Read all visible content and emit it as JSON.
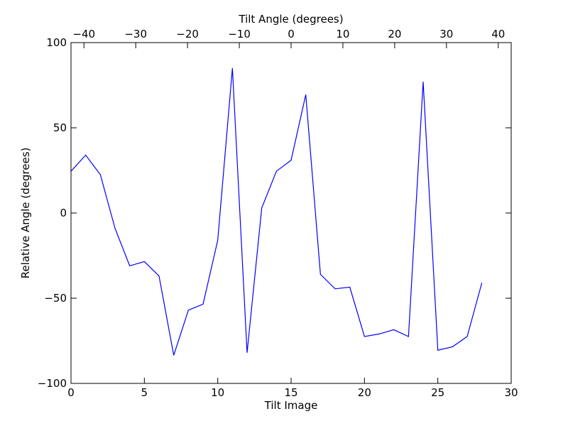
{
  "chart_data": {
    "type": "line",
    "title": "",
    "xlabel": "Tilt Image",
    "ylabel": "Relative Angle (degrees)",
    "top_xlabel": "Tilt Angle (degrees)",
    "xlim": [
      0,
      30
    ],
    "ylim": [
      -100,
      100
    ],
    "top_xlim": [
      -42.5,
      42.5
    ],
    "grid": false,
    "legend": "none",
    "line_color": "#0000ff",
    "x_ticks": [
      0,
      5,
      10,
      15,
      20,
      25,
      30
    ],
    "x_tick_labels": [
      "0",
      "5",
      "10",
      "15",
      "20",
      "25",
      "30"
    ],
    "y_ticks": [
      -100,
      -50,
      0,
      50,
      100
    ],
    "y_tick_labels": [
      "−100",
      "−50",
      "0",
      "50",
      "100"
    ],
    "top_x_ticks": [
      -40,
      -30,
      -20,
      -10,
      0,
      10,
      20,
      30,
      40
    ],
    "top_x_tick_labels": [
      "−40",
      "−30",
      "−20",
      "−10",
      "0",
      "10",
      "20",
      "30",
      "40"
    ],
    "series": [
      {
        "x": [
          0,
          1,
          2,
          3,
          4,
          5,
          6,
          7,
          8,
          9,
          10,
          11,
          12,
          13,
          14,
          15,
          16,
          17,
          18,
          19,
          20,
          21,
          22,
          23,
          24,
          25,
          26,
          27,
          28
        ],
        "values": [
          24.5,
          34,
          22.5,
          -9,
          -31,
          -28.5,
          -37,
          -83.5,
          -57,
          -53.5,
          -16,
          85,
          -82,
          3,
          24.5,
          31,
          69.5,
          -36,
          -44.5,
          -43.5,
          -72.5,
          -71,
          -68.5,
          -72.5,
          77,
          -80.5,
          -78.5,
          -72.5,
          -41
        ]
      }
    ]
  }
}
